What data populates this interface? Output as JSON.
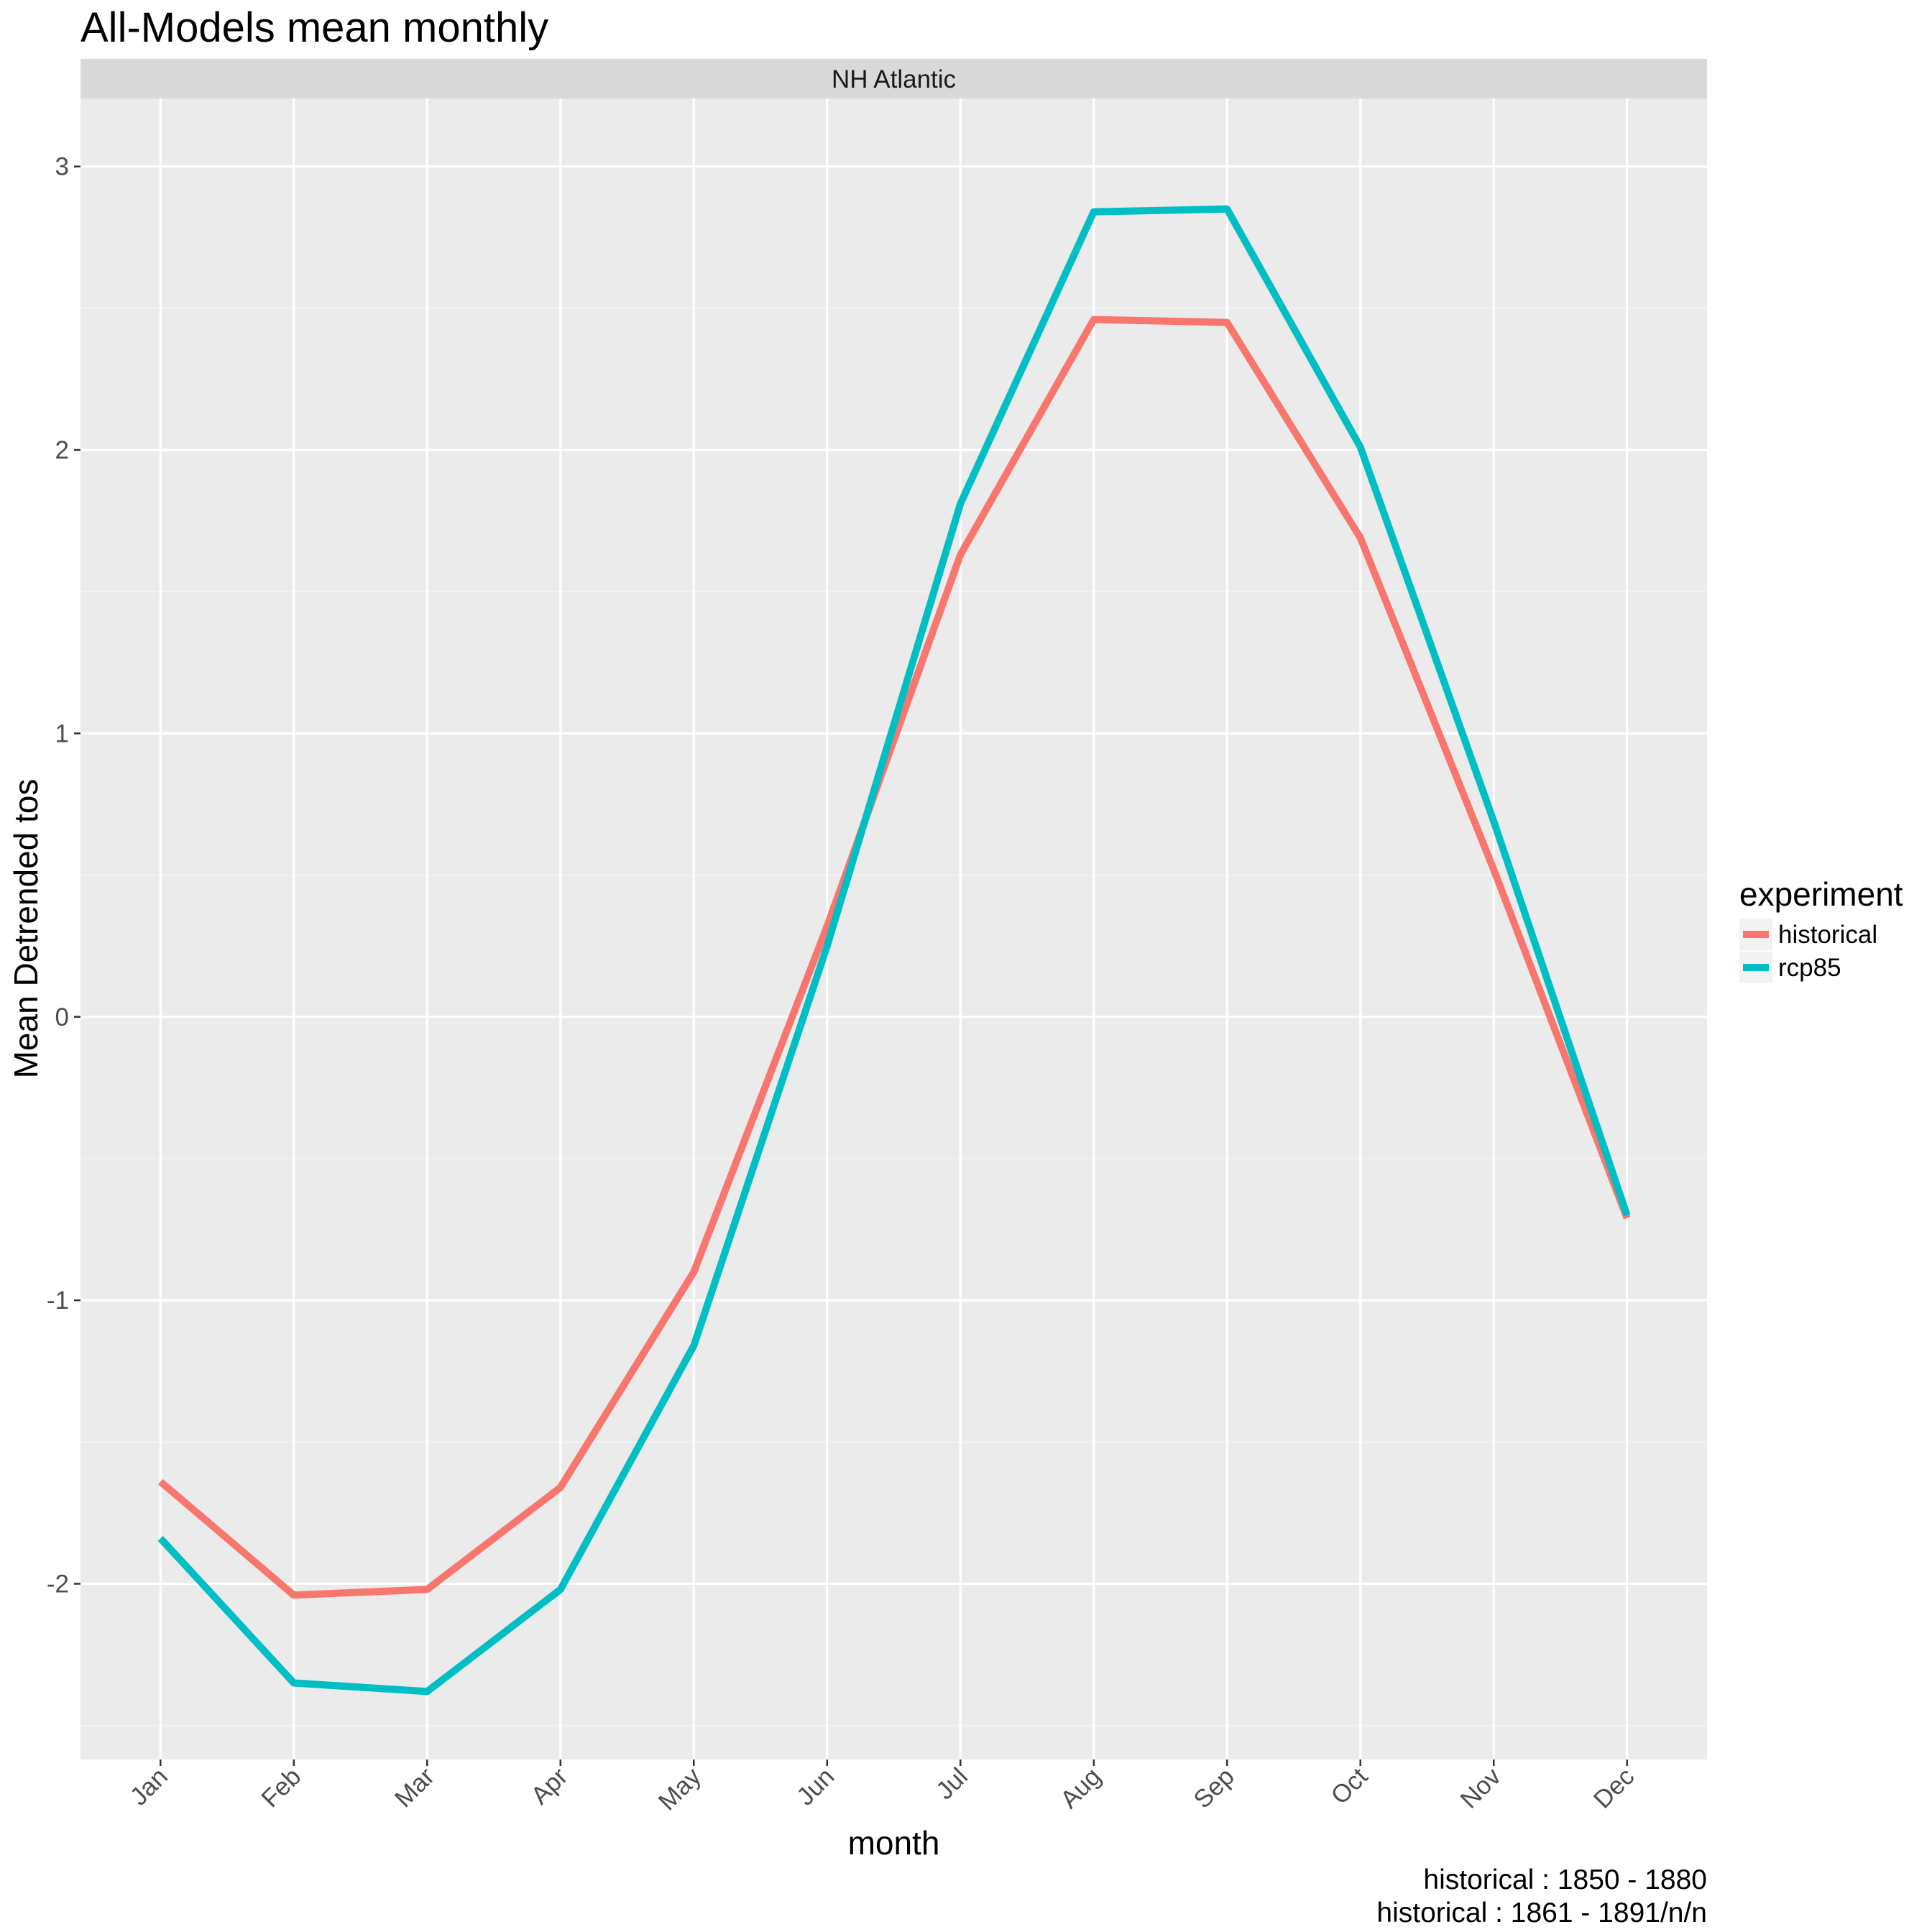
{
  "chart_data": {
    "type": "line",
    "title": "All-Models mean monthly",
    "facet": "NH Atlantic",
    "xlabel": "month",
    "ylabel": "Mean Detrended tos",
    "categories": [
      "Jan",
      "Feb",
      "Mar",
      "Apr",
      "May",
      "Jun",
      "Jul",
      "Aug",
      "Sep",
      "Oct",
      "Nov",
      "Dec"
    ],
    "yticks": [
      -2,
      -1,
      0,
      1,
      2,
      3
    ],
    "ylim": [
      -2.62,
      3.24
    ],
    "grid": true,
    "legend": {
      "title": "experiment",
      "placement": "right"
    },
    "series": [
      {
        "name": "historical",
        "color": "#F8766D",
        "values": [
          -1.64,
          -2.04,
          -2.02,
          -1.66,
          -0.9,
          0.32,
          1.63,
          2.46,
          2.45,
          1.69,
          0.52,
          -0.71
        ]
      },
      {
        "name": "rcp85",
        "color": "#00BFC4",
        "values": [
          -1.84,
          -2.35,
          -2.38,
          -2.02,
          -1.16,
          0.25,
          1.81,
          2.84,
          2.85,
          2.01,
          0.69,
          -0.7
        ]
      }
    ],
    "caption": [
      "historical : 1850 - 1880",
      "historical : 1861 - 1891/n/n"
    ]
  }
}
